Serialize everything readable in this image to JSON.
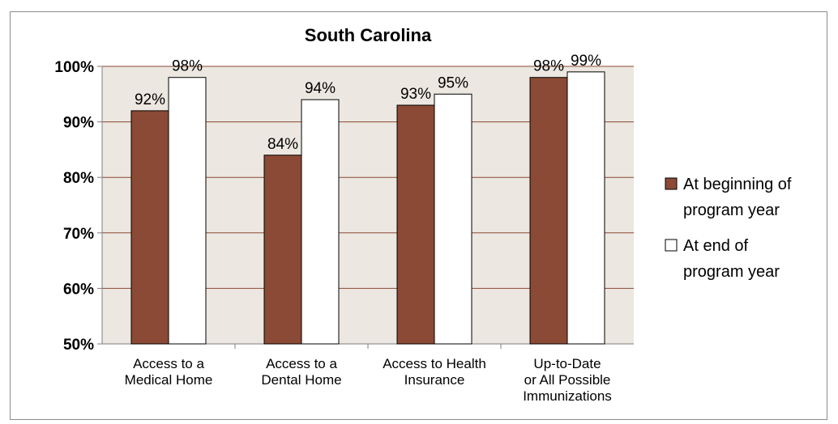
{
  "chart_data": {
    "type": "bar",
    "title": "South Carolina",
    "categories": [
      [
        "Access to a",
        "Medical Home"
      ],
      [
        "Access to a",
        "Dental Home"
      ],
      [
        "Access to Health",
        "Insurance"
      ],
      [
        "Up-to-Date",
        "or All Possible",
        "Immunizations"
      ]
    ],
    "series": [
      {
        "name": [
          "At beginning of",
          "program year"
        ],
        "values": [
          92,
          84,
          93,
          98
        ],
        "labels": [
          "92%",
          "84%",
          "93%",
          "98%"
        ],
        "color": "#8b4a35"
      },
      {
        "name": [
          "At end of",
          "program year"
        ],
        "values": [
          98,
          94,
          95,
          99
        ],
        "labels": [
          "98%",
          "94%",
          "95%",
          "99%"
        ],
        "color": "#ffffff"
      }
    ],
    "ylim": [
      50,
      100
    ],
    "yticks": [
      50,
      60,
      70,
      80,
      90,
      100
    ],
    "ytick_labels": [
      "50%",
      "60%",
      "70%",
      "80%",
      "90%",
      "100%"
    ],
    "plot_background": "#ece7e0",
    "grid": true,
    "legend_position": "right"
  }
}
